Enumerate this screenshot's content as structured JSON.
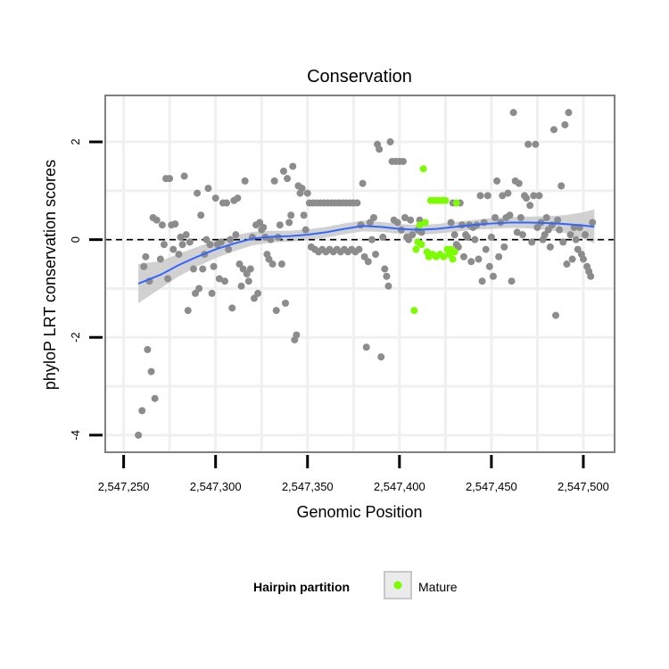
{
  "chart_data": {
    "type": "scatter",
    "title": "Conservation",
    "xlabel": "Genomic Position",
    "ylabel": "phyloP LRT conservation scores",
    "xlim": [
      2547240,
      2547517
    ],
    "ylim": [
      -4.35,
      2.95
    ],
    "x_ticks": [
      2547250,
      2547300,
      2547350,
      2547400,
      2547450,
      2547500
    ],
    "x_tick_labels": [
      "2,547,250",
      "2,547,300",
      "2,547,350",
      "2,547,400",
      "2,547,450",
      "2,547,500"
    ],
    "y_ticks": [
      -4,
      -2,
      0,
      2
    ],
    "y_tick_labels": [
      "-4",
      "-2",
      "0",
      "2"
    ],
    "grid": true,
    "reference_line": {
      "y": 0,
      "style": "dashed"
    },
    "legend": {
      "title": "Hairpin partition",
      "entries": [
        {
          "label": "Mature",
          "color": "#7cfc00"
        }
      ],
      "position": "bottom"
    },
    "colors": {
      "other": "#8c8c8c",
      "mature": "#7cfc00",
      "smooth": "#3366ff",
      "ribbon": "#c9c9c9"
    },
    "series": [
      {
        "kind": "points",
        "color_key": "other",
        "points": [
          [
            2547258,
            -4.0
          ],
          [
            2547260,
            -3.5
          ],
          [
            2547261,
            -0.55
          ],
          [
            2547262,
            -0.35
          ],
          [
            2547263,
            -2.25
          ],
          [
            2547264,
            -0.85
          ],
          [
            2547265,
            -2.7
          ],
          [
            2547266,
            0.45
          ],
          [
            2547267,
            -3.25
          ],
          [
            2547268,
            0.4
          ],
          [
            2547270,
            -0.4
          ],
          [
            2547271,
            0.3
          ],
          [
            2547272,
            -0.1
          ],
          [
            2547273,
            1.25
          ],
          [
            2547274,
            -0.8
          ],
          [
            2547275,
            1.25
          ],
          [
            2547276,
            0.3
          ],
          [
            2547277,
            -0.2
          ],
          [
            2547278,
            0.32
          ],
          [
            2547280,
            -0.3
          ],
          [
            2547281,
            0.05
          ],
          [
            2547282,
            -0.1
          ],
          [
            2547283,
            1.3
          ],
          [
            2547284,
            0.1
          ],
          [
            2547285,
            -1.45
          ],
          [
            2547286,
            -0.05
          ],
          [
            2547288,
            -0.6
          ],
          [
            2547289,
            -1.1
          ],
          [
            2547290,
            0.95
          ],
          [
            2547291,
            -1.0
          ],
          [
            2547292,
            0.5
          ],
          [
            2547293,
            -0.6
          ],
          [
            2547294,
            -0.3
          ],
          [
            2547295,
            0.0
          ],
          [
            2547296,
            1.05
          ],
          [
            2547297,
            -0.1
          ],
          [
            2547298,
            -1.1
          ],
          [
            2547299,
            -0.55
          ],
          [
            2547300,
            0.85
          ],
          [
            2547301,
            -0.1
          ],
          [
            2547302,
            -0.8
          ],
          [
            2547303,
            -0.05
          ],
          [
            2547304,
            0.75
          ],
          [
            2547305,
            -0.85
          ],
          [
            2547306,
            0.75
          ],
          [
            2547307,
            -0.2
          ],
          [
            2547308,
            0.0
          ],
          [
            2547309,
            -1.4
          ],
          [
            2547310,
            0.8
          ],
          [
            2547311,
            0.1
          ],
          [
            2547312,
            0.85
          ],
          [
            2547313,
            -0.5
          ],
          [
            2547314,
            -0.95
          ],
          [
            2547315,
            -0.6
          ],
          [
            2547316,
            1.2
          ],
          [
            2547317,
            -0.7
          ],
          [
            2547318,
            -0.85
          ],
          [
            2547319,
            -0.6
          ],
          [
            2547320,
            0.05
          ],
          [
            2547321,
            -1.2
          ],
          [
            2547322,
            0.3
          ],
          [
            2547323,
            -1.1
          ],
          [
            2547324,
            0.35
          ],
          [
            2547325,
            0.2
          ],
          [
            2547326,
            0.25
          ],
          [
            2547327,
            0.05
          ],
          [
            2547328,
            -0.3
          ],
          [
            2547329,
            -0.4
          ],
          [
            2547330,
            0.0
          ],
          [
            2547331,
            -0.5
          ],
          [
            2547332,
            1.2
          ],
          [
            2547333,
            -1.45
          ],
          [
            2547334,
            0.05
          ],
          [
            2547335,
            0.3
          ],
          [
            2547336,
            -0.5
          ],
          [
            2547337,
            1.4
          ],
          [
            2547338,
            -1.3
          ],
          [
            2547339,
            1.25
          ],
          [
            2547340,
            0.35
          ],
          [
            2547341,
            0.5
          ],
          [
            2547342,
            1.5
          ],
          [
            2547343,
            -2.05
          ],
          [
            2547344,
            -1.95
          ],
          [
            2547345,
            1.1
          ],
          [
            2547346,
            0.95
          ],
          [
            2547347,
            1.05
          ],
          [
            2547348,
            0.5
          ],
          [
            2547349,
            0.2
          ],
          [
            2547350,
            0.95
          ],
          [
            2547351,
            0.75
          ],
          [
            2547352,
            -0.15
          ],
          [
            2547353,
            0.75
          ],
          [
            2547354,
            -0.2
          ],
          [
            2547355,
            0.75
          ],
          [
            2547356,
            -0.25
          ],
          [
            2547357,
            0.75
          ],
          [
            2547358,
            -0.2
          ],
          [
            2547359,
            0.75
          ],
          [
            2547360,
            -0.25
          ],
          [
            2547361,
            0.75
          ],
          [
            2547362,
            -0.2
          ],
          [
            2547363,
            0.75
          ],
          [
            2547364,
            -0.25
          ],
          [
            2547365,
            0.75
          ],
          [
            2547366,
            -0.2
          ],
          [
            2547367,
            0.75
          ],
          [
            2547368,
            -0.25
          ],
          [
            2547369,
            0.75
          ],
          [
            2547370,
            -0.2
          ],
          [
            2547371,
            0.75
          ],
          [
            2547372,
            -0.25
          ],
          [
            2547373,
            0.75
          ],
          [
            2547374,
            -0.2
          ],
          [
            2547375,
            0.75
          ],
          [
            2547376,
            -0.25
          ],
          [
            2547377,
            0.75
          ],
          [
            2547378,
            -0.2
          ],
          [
            2547379,
            0.3
          ],
          [
            2547380,
            1.15
          ],
          [
            2547381,
            -0.35
          ],
          [
            2547382,
            -2.2
          ],
          [
            2547383,
            -0.45
          ],
          [
            2547384,
            0.35
          ],
          [
            2547385,
            0.0
          ],
          [
            2547386,
            0.45
          ],
          [
            2547387,
            -0.3
          ],
          [
            2547388,
            1.95
          ],
          [
            2547389,
            1.85
          ],
          [
            2547390,
            -2.4
          ],
          [
            2547391,
            0.05
          ],
          [
            2547392,
            -0.6
          ],
          [
            2547393,
            -0.75
          ],
          [
            2547394,
            -0.95
          ],
          [
            2547395,
            2.0
          ],
          [
            2547396,
            1.6
          ],
          [
            2547397,
            0.4
          ],
          [
            2547398,
            1.6
          ],
          [
            2547399,
            0.35
          ],
          [
            2547400,
            1.6
          ],
          [
            2547401,
            0.2
          ],
          [
            2547402,
            1.6
          ],
          [
            2547403,
            0.45
          ],
          [
            2547404,
            0.05
          ],
          [
            2547405,
            0.0
          ],
          [
            2547406,
            0.4
          ],
          [
            2547407,
            0.1
          ],
          [
            2547410,
            0.2
          ],
          [
            2547411,
            0.4
          ],
          [
            2547412,
            0.15
          ],
          [
            2547428,
            0.35
          ],
          [
            2547429,
            0.75
          ],
          [
            2547430,
            0.1
          ],
          [
            2547431,
            -0.1
          ],
          [
            2547432,
            -0.15
          ],
          [
            2547433,
            0.75
          ],
          [
            2547434,
            0.3
          ],
          [
            2547435,
            -0.35
          ],
          [
            2547436,
            0.1
          ],
          [
            2547437,
            0.05
          ],
          [
            2547438,
            0.3
          ],
          [
            2547439,
            -0.45
          ],
          [
            2547440,
            0.25
          ],
          [
            2547441,
            0.0
          ],
          [
            2547442,
            0.3
          ],
          [
            2547443,
            -0.4
          ],
          [
            2547444,
            0.9
          ],
          [
            2547445,
            -0.85
          ],
          [
            2547446,
            0.35
          ],
          [
            2547447,
            -0.2
          ],
          [
            2547448,
            0.9
          ],
          [
            2547449,
            -0.55
          ],
          [
            2547450,
            0.05
          ],
          [
            2547451,
            -0.75
          ],
          [
            2547452,
            0.45
          ],
          [
            2547453,
            1.2
          ],
          [
            2547454,
            -0.35
          ],
          [
            2547455,
            0.35
          ],
          [
            2547456,
            0.9
          ],
          [
            2547457,
            -0.15
          ],
          [
            2547458,
            0.45
          ],
          [
            2547459,
            0.95
          ],
          [
            2547460,
            0.5
          ],
          [
            2547461,
            -0.85
          ],
          [
            2547462,
            2.6
          ],
          [
            2547463,
            1.2
          ],
          [
            2547464,
            0.15
          ],
          [
            2547465,
            1.15
          ],
          [
            2547466,
            0.45
          ],
          [
            2547467,
            0.1
          ],
          [
            2547468,
            0.9
          ],
          [
            2547469,
            0.85
          ],
          [
            2547470,
            1.95
          ],
          [
            2547471,
            0.7
          ],
          [
            2547472,
            -0.05
          ],
          [
            2547473,
            0.9
          ],
          [
            2547474,
            1.95
          ],
          [
            2547475,
            0.25
          ],
          [
            2547476,
            0.9
          ],
          [
            2547477,
            0.35
          ],
          [
            2547478,
            0.0
          ],
          [
            2547479,
            0.1
          ],
          [
            2547480,
            0.45
          ],
          [
            2547481,
            0.2
          ],
          [
            2547482,
            -0.15
          ],
          [
            2547483,
            0.3
          ],
          [
            2547484,
            2.25
          ],
          [
            2547485,
            -1.55
          ],
          [
            2547486,
            0.4
          ],
          [
            2547487,
            0.2
          ],
          [
            2547488,
            1.1
          ],
          [
            2547489,
            -0.05
          ],
          [
            2547490,
            2.35
          ],
          [
            2547491,
            -0.5
          ],
          [
            2547492,
            2.6
          ],
          [
            2547493,
            0.1
          ],
          [
            2547494,
            -0.4
          ],
          [
            2547495,
            0.25
          ],
          [
            2547496,
            0.0
          ],
          [
            2547497,
            -0.2
          ],
          [
            2547498,
            0.25
          ],
          [
            2547499,
            -0.3
          ],
          [
            2547500,
            -0.4
          ],
          [
            2547501,
            0.1
          ],
          [
            2547502,
            -0.55
          ],
          [
            2547503,
            -0.65
          ],
          [
            2547504,
            -0.75
          ],
          [
            2547505,
            0.35
          ]
        ]
      },
      {
        "kind": "points",
        "color_key": "mature",
        "name": "Mature",
        "points": [
          [
            2547408,
            -1.45
          ],
          [
            2547409,
            -0.2
          ],
          [
            2547410,
            -0.05
          ],
          [
            2547411,
            0.3
          ],
          [
            2547412,
            -0.1
          ],
          [
            2547413,
            1.45
          ],
          [
            2547414,
            0.35
          ],
          [
            2547415,
            -0.25
          ],
          [
            2547416,
            -0.35
          ],
          [
            2547417,
            0.8
          ],
          [
            2547418,
            -0.3
          ],
          [
            2547419,
            0.8
          ],
          [
            2547420,
            -0.35
          ],
          [
            2547421,
            0.8
          ],
          [
            2547422,
            -0.3
          ],
          [
            2547423,
            0.8
          ],
          [
            2547424,
            -0.35
          ],
          [
            2547425,
            0.8
          ],
          [
            2547426,
            -0.2
          ],
          [
            2547427,
            -0.3
          ],
          [
            2547428,
            -0.2
          ],
          [
            2547429,
            -0.4
          ],
          [
            2547430,
            -0.25
          ],
          [
            2547431,
            0.75
          ]
        ]
      },
      {
        "kind": "smooth",
        "color_key": "smooth",
        "x": [
          2547258,
          2547270,
          2547280,
          2547290,
          2547300,
          2547310,
          2547320,
          2547330,
          2547340,
          2547350,
          2547360,
          2547370,
          2547380,
          2547390,
          2547400,
          2547410,
          2547420,
          2547430,
          2547440,
          2547450,
          2547460,
          2547470,
          2547480,
          2547490,
          2547500,
          2547506
        ],
        "y": [
          -0.9,
          -0.72,
          -0.52,
          -0.35,
          -0.2,
          -0.08,
          0.02,
          0.06,
          0.07,
          0.1,
          0.15,
          0.22,
          0.28,
          0.26,
          0.22,
          0.2,
          0.22,
          0.26,
          0.3,
          0.33,
          0.35,
          0.35,
          0.34,
          0.32,
          0.29,
          0.26
        ],
        "lower": [
          -1.3,
          -1.0,
          -0.75,
          -0.55,
          -0.38,
          -0.24,
          -0.12,
          -0.06,
          -0.04,
          -0.01,
          0.04,
          0.11,
          0.17,
          0.16,
          0.12,
          0.1,
          0.12,
          0.16,
          0.2,
          0.22,
          0.24,
          0.23,
          0.2,
          0.14,
          0.02,
          -0.08
        ],
        "upper": [
          -0.5,
          -0.44,
          -0.29,
          -0.15,
          -0.02,
          0.08,
          0.16,
          0.18,
          0.18,
          0.21,
          0.26,
          0.33,
          0.39,
          0.36,
          0.32,
          0.3,
          0.32,
          0.36,
          0.4,
          0.44,
          0.46,
          0.47,
          0.48,
          0.5,
          0.56,
          0.62
        ]
      }
    ]
  }
}
